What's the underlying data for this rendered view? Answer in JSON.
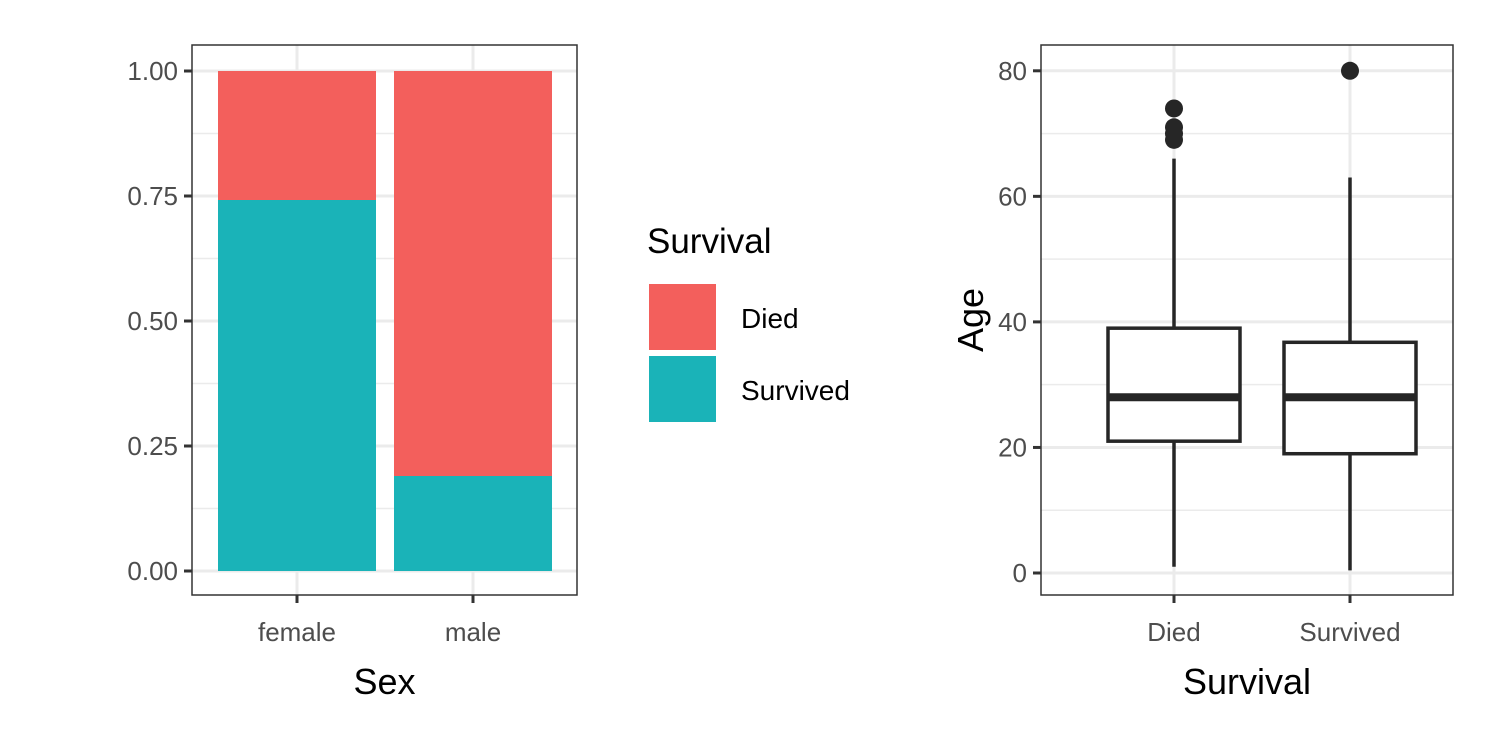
{
  "chart_data": [
    {
      "type": "bar",
      "stacked": "fill",
      "title": "",
      "xlabel": "Sex",
      "ylabel": "",
      "categories": [
        "female",
        "male"
      ],
      "ylim": [
        0,
        1
      ],
      "yticks": [
        0,
        0.25,
        0.5,
        0.75,
        1
      ],
      "ytick_labels": [
        "0.00",
        "0.25",
        "0.50",
        "0.75",
        "1.00"
      ],
      "series": [
        {
          "name": "Died",
          "color": "#F35F5C",
          "values": [
            0.258,
            0.81
          ]
        },
        {
          "name": "Survived",
          "color": "#1AB3B8",
          "values": [
            0.742,
            0.19
          ]
        }
      ],
      "legend": {
        "title": "Survival",
        "entries": [
          "Died",
          "Survived"
        ],
        "placement": "right"
      },
      "grid": true
    },
    {
      "type": "boxplot",
      "title": "",
      "xlabel": "Survival",
      "ylabel": "Age",
      "categories": [
        "Died",
        "Survived"
      ],
      "ylim": [
        -3.5,
        84
      ],
      "yticks": [
        0,
        20,
        40,
        60,
        80
      ],
      "ytick_labels": [
        "0",
        "20",
        "40",
        "60",
        "80"
      ],
      "boxes": [
        {
          "name": "Died",
          "whisker_low": 1,
          "q1": 21,
          "median": 28,
          "q3": 39,
          "whisker_high": 66,
          "outliers": [
            69,
            70,
            71,
            74
          ]
        },
        {
          "name": "Survived",
          "whisker_low": 0.42,
          "q1": 19,
          "median": 28,
          "q3": 36.75,
          "whisker_high": 63,
          "outliers": [
            80
          ]
        }
      ],
      "grid": true
    }
  ]
}
